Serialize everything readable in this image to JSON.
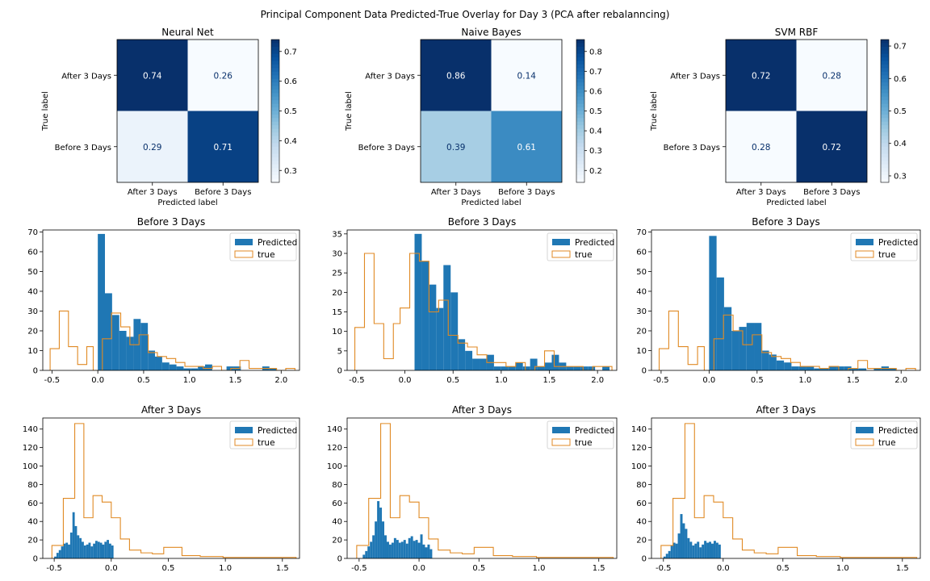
{
  "figure": {
    "title": "Principal Component Data Predicted-True Overlay for Day 3 (PCA after rebalanncing)"
  },
  "colors": {
    "predicted": "#1f77b4",
    "true": "#e08a24",
    "cmap_low": "#f7fbff",
    "cmap_high": "#08306b",
    "text_dark": "#08306b",
    "text_light": "#ffffff"
  },
  "chart_data": [
    {
      "type": "heatmap",
      "title": "Neural Net",
      "xlabel": "Predicted label",
      "ylabel": "True label",
      "x_labels": [
        "After 3 Days",
        "Before 3 Days"
      ],
      "y_labels": [
        "After 3 Days",
        "Before 3 Days"
      ],
      "values": [
        [
          0.74,
          0.26
        ],
        [
          0.29,
          0.71
        ]
      ],
      "colorbar": {
        "min": 0.26,
        "max": 0.74,
        "ticks": [
          0.3,
          0.4,
          0.5,
          0.6,
          0.7
        ]
      }
    },
    {
      "type": "heatmap",
      "title": "Naive Bayes",
      "xlabel": "Predicted label",
      "ylabel": "True label",
      "x_labels": [
        "After 3 Days",
        "Before 3 Days"
      ],
      "y_labels": [
        "After 3 Days",
        "Before 3 Days"
      ],
      "values": [
        [
          0.86,
          0.14
        ],
        [
          0.39,
          0.61
        ]
      ],
      "colorbar": {
        "min": 0.14,
        "max": 0.86,
        "ticks": [
          0.2,
          0.3,
          0.4,
          0.5,
          0.6,
          0.7,
          0.8
        ]
      }
    },
    {
      "type": "heatmap",
      "title": "SVM RBF",
      "xlabel": "Predicted label",
      "ylabel": "True label",
      "x_labels": [
        "After 3 Days",
        "Before 3 Days"
      ],
      "y_labels": [
        "After 3 Days",
        "Before 3 Days"
      ],
      "values": [
        [
          0.72,
          0.28
        ],
        [
          0.28,
          0.72
        ]
      ],
      "colorbar": {
        "min": 0.28,
        "max": 0.72,
        "ticks": [
          0.3,
          0.4,
          0.5,
          0.6,
          0.7
        ]
      }
    },
    {
      "type": "histogram",
      "title": "Before 3 Days",
      "legend": "top-right",
      "xlim": [
        -0.6,
        2.2
      ],
      "ylim": [
        0,
        71
      ],
      "xticks": [
        -0.5,
        0.0,
        0.5,
        1.0,
        1.5,
        2.0
      ],
      "yticks": [
        0,
        10,
        20,
        30,
        40,
        50,
        60,
        70
      ],
      "series": [
        {
          "name": "Predicted",
          "style": "filled",
          "edges": [
            0.0,
            0.078,
            0.156,
            0.234,
            0.312,
            0.39,
            0.468,
            0.546,
            0.624,
            0.702,
            0.78,
            0.858,
            0.936,
            1.014,
            1.092,
            1.17,
            1.248,
            1.326,
            1.404,
            1.482,
            1.56,
            1.638,
            1.716,
            1.794,
            1.872,
            1.95
          ],
          "counts": [
            69,
            39,
            28,
            20,
            17,
            26,
            24,
            10,
            7,
            4,
            3,
            2,
            1,
            1,
            2,
            3,
            0,
            0,
            2,
            2,
            0,
            0,
            0,
            2,
            1
          ]
        },
        {
          "name": "true",
          "style": "step",
          "edges": [
            -0.52,
            -0.42,
            -0.32,
            -0.22,
            -0.12,
            -0.05,
            0.05,
            0.15,
            0.25,
            0.35,
            0.45,
            0.55,
            0.65,
            0.75,
            0.85,
            0.95,
            1.05,
            1.15,
            1.25,
            1.35,
            1.45,
            1.55,
            1.65,
            1.75,
            1.85,
            1.95,
            2.05,
            2.15
          ],
          "counts": [
            11,
            30,
            12,
            3,
            12,
            0,
            16,
            29,
            22,
            13,
            18,
            9,
            7,
            6,
            4,
            2,
            2,
            1,
            2,
            0,
            1,
            5,
            1,
            1,
            1,
            0,
            1
          ]
        }
      ]
    },
    {
      "type": "histogram",
      "title": "Before 3 Days",
      "legend": "top-right",
      "xlim": [
        -0.6,
        2.2
      ],
      "ylim": [
        0,
        36
      ],
      "xticks": [
        -0.5,
        0.0,
        0.5,
        1.0,
        1.5,
        2.0
      ],
      "yticks": [
        0,
        5,
        10,
        15,
        20,
        25,
        30,
        35
      ],
      "series": [
        {
          "name": "Predicted",
          "style": "filled",
          "edges": [
            0.1,
            0.175,
            0.25,
            0.325,
            0.4,
            0.475,
            0.55,
            0.625,
            0.7,
            0.775,
            0.85,
            0.925,
            1.0,
            1.075,
            1.15,
            1.225,
            1.3,
            1.375,
            1.45,
            1.525,
            1.6,
            1.675,
            1.75,
            1.825,
            1.9,
            1.975,
            2.05,
            2.125
          ],
          "counts": [
            35,
            28,
            22,
            16,
            27,
            20,
            8,
            5,
            3,
            3,
            4,
            1,
            1,
            1,
            2,
            1,
            3,
            1,
            2,
            4,
            2,
            1,
            1,
            1,
            1,
            0,
            1
          ]
        },
        {
          "name": "true",
          "style": "step",
          "edges": [
            -0.52,
            -0.42,
            -0.32,
            -0.22,
            -0.12,
            -0.05,
            0.05,
            0.15,
            0.25,
            0.35,
            0.45,
            0.55,
            0.65,
            0.75,
            0.85,
            0.95,
            1.05,
            1.15,
            1.25,
            1.35,
            1.45,
            1.55,
            1.65,
            1.75,
            1.85,
            1.95,
            2.05,
            2.15
          ],
          "counts": [
            11,
            30,
            12,
            3,
            12,
            16,
            30,
            28,
            15,
            18,
            9,
            7,
            6,
            4,
            2,
            2,
            1,
            2,
            0,
            1,
            5,
            1,
            1,
            1,
            0,
            1,
            1
          ]
        }
      ]
    },
    {
      "type": "histogram",
      "title": "Before 3 Days",
      "legend": "top-right",
      "xlim": [
        -0.6,
        2.2
      ],
      "ylim": [
        0,
        71
      ],
      "xticks": [
        -0.5,
        0.0,
        0.5,
        1.0,
        1.5,
        2.0
      ],
      "yticks": [
        0,
        10,
        20,
        30,
        40,
        50,
        60,
        70
      ],
      "series": [
        {
          "name": "Predicted",
          "style": "filled",
          "edges": [
            0.0,
            0.078,
            0.156,
            0.234,
            0.312,
            0.39,
            0.468,
            0.546,
            0.624,
            0.702,
            0.78,
            0.858,
            0.936,
            1.014,
            1.092,
            1.17,
            1.248,
            1.326,
            1.404,
            1.482,
            1.56,
            1.638,
            1.716,
            1.794,
            1.872,
            1.95
          ],
          "counts": [
            68,
            47,
            32,
            20,
            22,
            24,
            24,
            10,
            8,
            5,
            4,
            2,
            2,
            2,
            1,
            1,
            2,
            2,
            2,
            1,
            1,
            0,
            1,
            2,
            1
          ]
        },
        {
          "name": "true",
          "style": "step",
          "edges": [
            -0.52,
            -0.42,
            -0.32,
            -0.22,
            -0.12,
            -0.05,
            0.05,
            0.15,
            0.25,
            0.35,
            0.45,
            0.55,
            0.65,
            0.75,
            0.85,
            0.95,
            1.05,
            1.15,
            1.25,
            1.35,
            1.45,
            1.55,
            1.65,
            1.75,
            1.85,
            1.95,
            2.05,
            2.15
          ],
          "counts": [
            11,
            30,
            12,
            3,
            12,
            0,
            16,
            28,
            20,
            13,
            18,
            9,
            7,
            6,
            4,
            2,
            2,
            1,
            2,
            0,
            1,
            5,
            1,
            1,
            1,
            0,
            1
          ]
        }
      ]
    },
    {
      "type": "histogram",
      "title": "After 3 Days",
      "legend": "top-right",
      "xlim": [
        -0.6,
        1.65
      ],
      "ylim": [
        0,
        152
      ],
      "xticks": [
        -0.5,
        0.0,
        0.5,
        1.0,
        1.5
      ],
      "yticks": [
        0,
        20,
        40,
        60,
        80,
        100,
        120,
        140
      ],
      "series": [
        {
          "name": "Predicted",
          "style": "filled",
          "edges": [
            -0.5,
            -0.48,
            -0.46,
            -0.44,
            -0.42,
            -0.4,
            -0.38,
            -0.36,
            -0.34,
            -0.32,
            -0.3,
            -0.28,
            -0.26,
            -0.24,
            -0.22,
            -0.2,
            -0.18,
            -0.16,
            -0.14,
            -0.12,
            -0.1,
            -0.08,
            -0.06,
            -0.04,
            -0.02,
            0.0,
            0.02
          ],
          "counts": [
            2,
            6,
            9,
            13,
            16,
            17,
            15,
            28,
            50,
            35,
            25,
            22,
            18,
            14,
            15,
            17,
            13,
            16,
            19,
            18,
            17,
            15,
            18,
            20,
            16,
            14
          ]
        },
        {
          "name": "true",
          "style": "step",
          "edges": [
            -0.52,
            -0.42,
            -0.32,
            -0.24,
            -0.16,
            -0.08,
            0.0,
            0.08,
            0.16,
            0.26,
            0.36,
            0.46,
            0.62,
            0.78,
            0.98,
            1.22,
            1.46,
            1.62
          ],
          "counts": [
            14,
            65,
            146,
            44,
            68,
            61,
            44,
            21,
            9,
            6,
            5,
            12,
            3,
            2,
            1,
            1,
            1
          ]
        }
      ]
    },
    {
      "type": "histogram",
      "title": "After 3 Days",
      "legend": "top-right",
      "xlim": [
        -0.6,
        1.65
      ],
      "ylim": [
        0,
        152
      ],
      "xticks": [
        -0.5,
        0.0,
        0.5,
        1.0,
        1.5
      ],
      "yticks": [
        0,
        20,
        40,
        60,
        80,
        100,
        120,
        140
      ],
      "series": [
        {
          "name": "Predicted",
          "style": "filled",
          "edges": [
            -0.47,
            -0.45,
            -0.43,
            -0.41,
            -0.39,
            -0.37,
            -0.35,
            -0.33,
            -0.31,
            -0.29,
            -0.27,
            -0.25,
            -0.23,
            -0.21,
            -0.19,
            -0.17,
            -0.15,
            -0.13,
            -0.11,
            -0.09,
            -0.07,
            -0.05,
            -0.03,
            -0.01,
            0.01,
            0.03,
            0.05,
            0.07,
            0.09,
            0.11
          ],
          "counts": [
            4,
            8,
            13,
            18,
            25,
            40,
            62,
            55,
            40,
            25,
            18,
            15,
            17,
            22,
            20,
            17,
            18,
            20,
            16,
            22,
            24,
            19,
            20,
            17,
            26,
            15,
            12,
            15,
            10
          ]
        },
        {
          "name": "true",
          "style": "step",
          "edges": [
            -0.52,
            -0.42,
            -0.32,
            -0.24,
            -0.16,
            -0.08,
            0.0,
            0.08,
            0.16,
            0.26,
            0.36,
            0.46,
            0.62,
            0.78,
            0.98,
            1.22,
            1.46,
            1.62
          ],
          "counts": [
            14,
            65,
            146,
            44,
            68,
            61,
            44,
            21,
            9,
            6,
            5,
            12,
            3,
            2,
            1,
            1,
            1
          ]
        }
      ]
    },
    {
      "type": "histogram",
      "title": "After 3 Days",
      "legend": "top-right",
      "xlim": [
        -0.6,
        1.65
      ],
      "ylim": [
        0,
        152
      ],
      "xticks": [
        -0.5,
        0.0,
        0.5,
        1.0,
        1.5
      ],
      "yticks": [
        0,
        20,
        40,
        60,
        80,
        100,
        120,
        140
      ],
      "series": [
        {
          "name": "Predicted",
          "style": "filled",
          "edges": [
            -0.5,
            -0.48,
            -0.46,
            -0.44,
            -0.42,
            -0.4,
            -0.38,
            -0.36,
            -0.34,
            -0.32,
            -0.3,
            -0.28,
            -0.26,
            -0.24,
            -0.22,
            -0.2,
            -0.18,
            -0.16,
            -0.14,
            -0.12,
            -0.1,
            -0.08,
            -0.06,
            -0.04,
            -0.02
          ],
          "counts": [
            2,
            5,
            8,
            14,
            17,
            16,
            27,
            48,
            38,
            32,
            22,
            18,
            14,
            16,
            18,
            12,
            15,
            19,
            17,
            18,
            16,
            19,
            17,
            15
          ]
        },
        {
          "name": "true",
          "style": "step",
          "edges": [
            -0.52,
            -0.42,
            -0.32,
            -0.24,
            -0.16,
            -0.08,
            0.0,
            0.08,
            0.16,
            0.26,
            0.36,
            0.46,
            0.62,
            0.78,
            0.98,
            1.22,
            1.46,
            1.62
          ],
          "counts": [
            14,
            65,
            146,
            44,
            68,
            61,
            44,
            21,
            9,
            6,
            5,
            12,
            3,
            2,
            1,
            1,
            1
          ]
        }
      ]
    }
  ]
}
